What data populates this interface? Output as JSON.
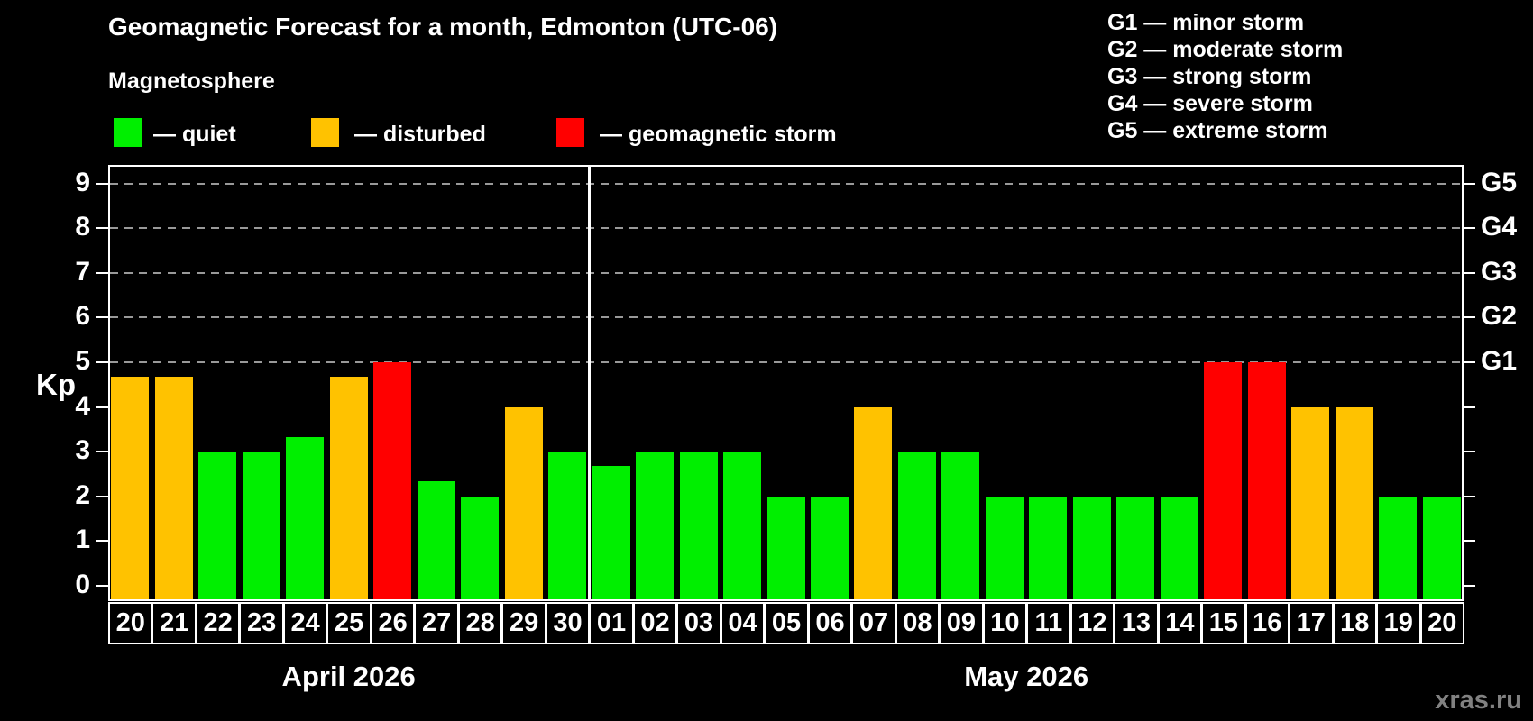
{
  "title": "Geomagnetic Forecast for a month, Edmonton (UTC-06)",
  "subtitle": "Magnetosphere",
  "legend": {
    "items": [
      {
        "key": "quiet",
        "label": "— quiet"
      },
      {
        "key": "disturbed",
        "label": "— disturbed"
      },
      {
        "key": "storm",
        "label": "— geomagnetic storm"
      }
    ]
  },
  "g_scale_legend": {
    "lines": [
      "G1 — minor storm",
      "G2 — moderate storm",
      "G3 — strong storm",
      "G4 — severe storm",
      "G5 — extreme storm"
    ]
  },
  "watermark": "xras.ru",
  "colors": {
    "quiet": "#00ef00",
    "disturbed": "#ffc200",
    "storm": "#ff0000",
    "background": "#000000",
    "axis": "#ffffff",
    "grid": "#999999",
    "watermark": "#818181"
  },
  "chart_data": {
    "type": "bar",
    "title": "Geomagnetic Forecast for a month, Edmonton (UTC-06)",
    "xlabel": "",
    "ylabel": "Kp",
    "ylim": [
      0,
      9
    ],
    "yticks": [
      "0",
      "1",
      "2",
      "3",
      "4",
      "5",
      "6",
      "7",
      "8",
      "9"
    ],
    "grid_values": [
      5,
      6,
      7,
      8,
      9
    ],
    "grid_on": true,
    "legend_position": "top",
    "right_axis_labels": [
      {
        "label": "G1",
        "value": 5
      },
      {
        "label": "G2",
        "value": 6
      },
      {
        "label": "G3",
        "value": 7
      },
      {
        "label": "G4",
        "value": 8
      },
      {
        "label": "G5",
        "value": 9
      }
    ],
    "months": [
      {
        "label": "April 2026",
        "days": [
          {
            "day": "20",
            "kp": 4.67,
            "status": "disturbed"
          },
          {
            "day": "21",
            "kp": 4.67,
            "status": "disturbed"
          },
          {
            "day": "22",
            "kp": 3,
            "status": "quiet"
          },
          {
            "day": "23",
            "kp": 3,
            "status": "quiet"
          },
          {
            "day": "24",
            "kp": 3.33,
            "status": "quiet"
          },
          {
            "day": "25",
            "kp": 4.67,
            "status": "disturbed"
          },
          {
            "day": "26",
            "kp": 5,
            "status": "storm"
          },
          {
            "day": "27",
            "kp": 2.33,
            "status": "quiet"
          },
          {
            "day": "28",
            "kp": 2,
            "status": "quiet"
          },
          {
            "day": "29",
            "kp": 4,
            "status": "disturbed"
          },
          {
            "day": "30",
            "kp": 3,
            "status": "quiet"
          }
        ]
      },
      {
        "label": "May 2026",
        "days": [
          {
            "day": "01",
            "kp": 2.67,
            "status": "quiet"
          },
          {
            "day": "02",
            "kp": 3,
            "status": "quiet"
          },
          {
            "day": "03",
            "kp": 3,
            "status": "quiet"
          },
          {
            "day": "04",
            "kp": 3,
            "status": "quiet"
          },
          {
            "day": "05",
            "kp": 2,
            "status": "quiet"
          },
          {
            "day": "06",
            "kp": 2,
            "status": "quiet"
          },
          {
            "day": "07",
            "kp": 4,
            "status": "disturbed"
          },
          {
            "day": "08",
            "kp": 3,
            "status": "quiet"
          },
          {
            "day": "09",
            "kp": 3,
            "status": "quiet"
          },
          {
            "day": "10",
            "kp": 2,
            "status": "quiet"
          },
          {
            "day": "11",
            "kp": 2,
            "status": "quiet"
          },
          {
            "day": "12",
            "kp": 2,
            "status": "quiet"
          },
          {
            "day": "13",
            "kp": 2,
            "status": "quiet"
          },
          {
            "day": "14",
            "kp": 2,
            "status": "quiet"
          },
          {
            "day": "15",
            "kp": 5,
            "status": "storm"
          },
          {
            "day": "16",
            "kp": 5,
            "status": "storm"
          },
          {
            "day": "17",
            "kp": 4,
            "status": "disturbed"
          },
          {
            "day": "18",
            "kp": 4,
            "status": "disturbed"
          },
          {
            "day": "19",
            "kp": 2,
            "status": "quiet"
          },
          {
            "day": "20",
            "kp": 2,
            "status": "quiet"
          }
        ]
      }
    ]
  }
}
